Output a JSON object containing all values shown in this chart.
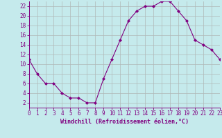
{
  "x": [
    0,
    1,
    2,
    3,
    4,
    5,
    6,
    7,
    8,
    9,
    10,
    11,
    12,
    13,
    14,
    15,
    16,
    17,
    18,
    19,
    20,
    21,
    22,
    23
  ],
  "y": [
    11,
    8,
    6,
    6,
    4,
    3,
    3,
    2,
    2,
    7,
    11,
    15,
    19,
    21,
    22,
    22,
    23,
    23,
    21,
    19,
    15,
    14,
    13,
    11
  ],
  "line_color": "#800080",
  "marker": "D",
  "marker_size": 2.0,
  "bg_color": "#c5eaec",
  "grid_color": "#b0b8b8",
  "xlabel": "Windchill (Refroidissement éolien,°C)",
  "xlim": [
    0,
    23
  ],
  "ylim": [
    1,
    23
  ],
  "xticks": [
    0,
    1,
    2,
    3,
    4,
    5,
    6,
    7,
    8,
    9,
    10,
    11,
    12,
    13,
    14,
    15,
    16,
    17,
    18,
    19,
    20,
    21,
    22,
    23
  ],
  "yticks": [
    2,
    4,
    6,
    8,
    10,
    12,
    14,
    16,
    18,
    20,
    22
  ],
  "tick_color": "#800080",
  "label_color": "#800080",
  "spine_color": "#800080",
  "tick_fontsize": 5.5,
  "xlabel_fontsize": 6.0
}
